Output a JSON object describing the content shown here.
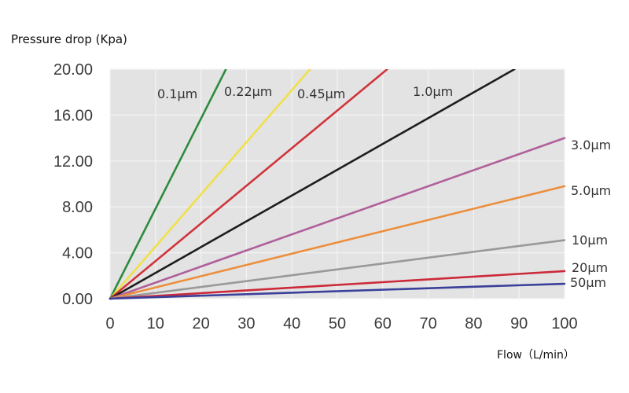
{
  "chart_data": {
    "type": "line",
    "title": "",
    "ylabel": "Pressure drop (Kpa)",
    "xlabel": "Flow（L/min）",
    "xlim": [
      0,
      100
    ],
    "ylim": [
      0,
      20
    ],
    "x_ticks": [
      0,
      10,
      20,
      30,
      40,
      50,
      60,
      70,
      80,
      90,
      100
    ],
    "x_tick_labels": [
      "0",
      "10",
      "20",
      "30",
      "40",
      "50",
      "60",
      "70",
      "80",
      "90",
      "100"
    ],
    "y_ticks": [
      0,
      4,
      8,
      12,
      16,
      20
    ],
    "y_tick_labels": [
      "0.00",
      "4.00",
      "8.00",
      "12.00",
      "16.00",
      "20.00"
    ],
    "grid": true,
    "series": [
      {
        "name": "0.1µm",
        "x": [
          0,
          25.5
        ],
        "y": [
          0,
          20
        ],
        "color": "#2e8b3e"
      },
      {
        "name": "0.22µm",
        "x": [
          0,
          44
        ],
        "y": [
          0,
          20
        ],
        "color": "#f0e04a"
      },
      {
        "name": "0.45µm",
        "x": [
          0,
          61
        ],
        "y": [
          0,
          20
        ],
        "color": "#d0343c"
      },
      {
        "name": "1.0µm",
        "x": [
          0,
          89
        ],
        "y": [
          0,
          20
        ],
        "color": "#1e1e1e"
      },
      {
        "name": "3.0µm",
        "x": [
          0,
          100
        ],
        "y": [
          0,
          14
        ],
        "color": "#b0609a"
      },
      {
        "name": "5.0µm",
        "x": [
          0,
          100
        ],
        "y": [
          0,
          9.8
        ],
        "color": "#ec8e3c"
      },
      {
        "name": "10µm",
        "x": [
          0,
          100
        ],
        "y": [
          0,
          5.1
        ],
        "color": "#999999"
      },
      {
        "name": "20µm",
        "x": [
          0,
          100
        ],
        "y": [
          0,
          2.4
        ],
        "color": "#cc2a3a"
      },
      {
        "name": "50µm",
        "x": [
          0,
          100
        ],
        "y": [
          0,
          1.3
        ],
        "color": "#3a3f9a"
      }
    ]
  },
  "colors": {
    "plot_background": "#e3e3e3",
    "grid": "#f4f4f4",
    "tick_text": "#3a3a3a"
  }
}
